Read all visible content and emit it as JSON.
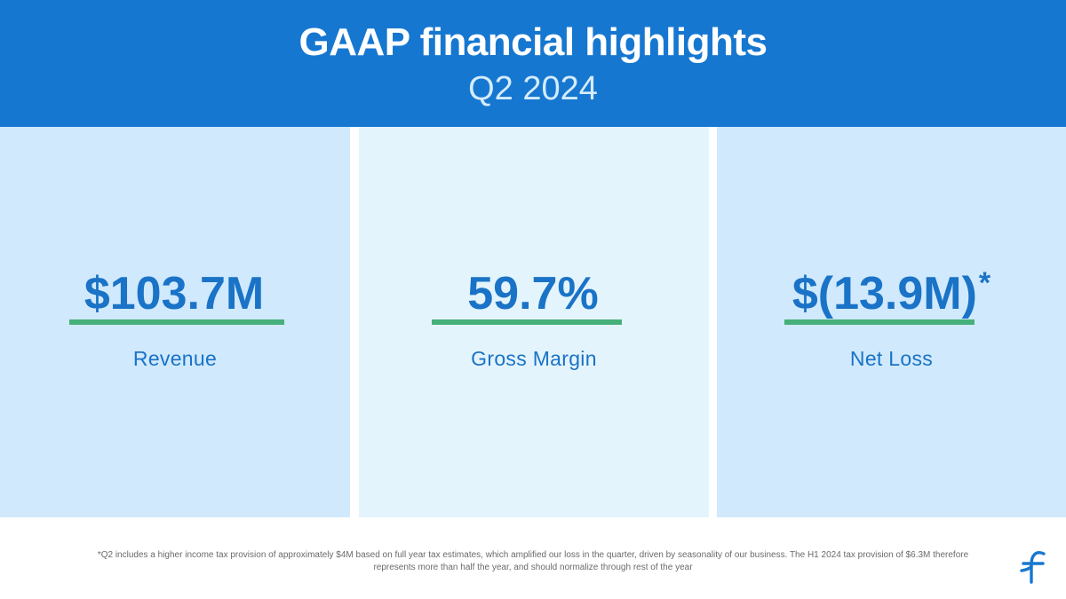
{
  "header": {
    "title": "GAAP financial highlights",
    "subtitle": "Q2 2024",
    "background_color": "#1677d0"
  },
  "metrics": [
    {
      "value": "$103.7M",
      "asterisk": "",
      "label": "Revenue"
    },
    {
      "value": "59.7%",
      "asterisk": "",
      "label": "Gross Margin"
    },
    {
      "value": "$(13.9M)",
      "asterisk": "*",
      "label": "Net Loss"
    }
  ],
  "colors": {
    "accent_text": "#1a73c6",
    "underline": "#46b07a",
    "panel_light": "#d0e9fd",
    "panel_lighter": "#e4f4fd"
  },
  "footnote": "*Q2 includes a higher income tax provision of approximately $4M based on full year tax estimates, which amplified our loss in the quarter, driven by seasonality of our business. The H1 2024 tax provision of $6.3M therefore represents more than half the year, and should normalize through rest of the year",
  "logo": {
    "icon": "company-logo-icon"
  }
}
